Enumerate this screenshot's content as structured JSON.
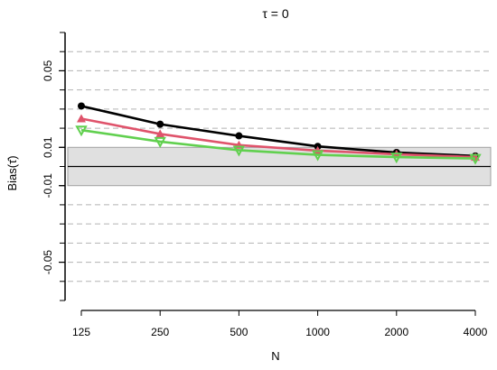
{
  "chart_data": {
    "type": "line",
    "title": "τ = 0",
    "xlabel": "N",
    "ylabel": "Bias(τ̂)",
    "categories": [
      "125",
      "250",
      "500",
      "1000",
      "2000",
      "4000"
    ],
    "ylim": [
      -0.07,
      0.07
    ],
    "yticks": [
      -0.05,
      -0.01,
      0.01,
      0.05
    ],
    "ytick_labels": [
      "-0.05",
      "-0.01",
      "0.01",
      "0.05"
    ],
    "gridlines_y": [
      -0.06,
      -0.05,
      -0.04,
      -0.03,
      -0.02,
      0.02,
      0.03,
      0.04,
      0.05,
      0.06
    ],
    "reference_line_y": 0,
    "band": [
      -0.01,
      0.01
    ],
    "band_color": "#e0e0e0",
    "grid": true,
    "series": [
      {
        "values": [
          0.0316,
          0.0221,
          0.016,
          0.0105,
          0.0073,
          0.0055
        ],
        "color": "#000000",
        "marker": "circle"
      },
      {
        "values": [
          0.025,
          0.017,
          0.0112,
          0.0083,
          0.0064,
          0.0049
        ],
        "color": "#df536b",
        "marker": "triangle-up"
      },
      {
        "values": [
          0.019,
          0.013,
          0.0085,
          0.0061,
          0.0049,
          0.0042
        ],
        "color": "#61d04f",
        "marker": "triangle-down"
      }
    ]
  }
}
